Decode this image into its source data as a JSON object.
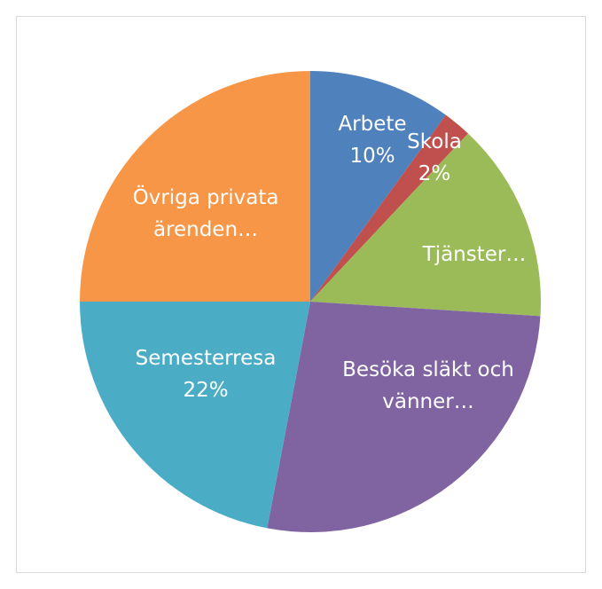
{
  "chart_data": {
    "type": "pie",
    "categories": [
      "Arbete",
      "Skola",
      "Tjänster…",
      "Besöka släkt och vänner…",
      "Semesterresa",
      "Övriga privata ärenden…"
    ],
    "values": [
      10,
      2,
      14,
      27,
      22,
      25
    ],
    "value_labels": [
      "10%",
      "2%",
      null,
      null,
      "22%",
      null
    ],
    "colors": [
      "#4f81bd",
      "#c0504d",
      "#9bbb59",
      "#8064a2",
      "#4bacc6",
      "#f79646"
    ]
  }
}
